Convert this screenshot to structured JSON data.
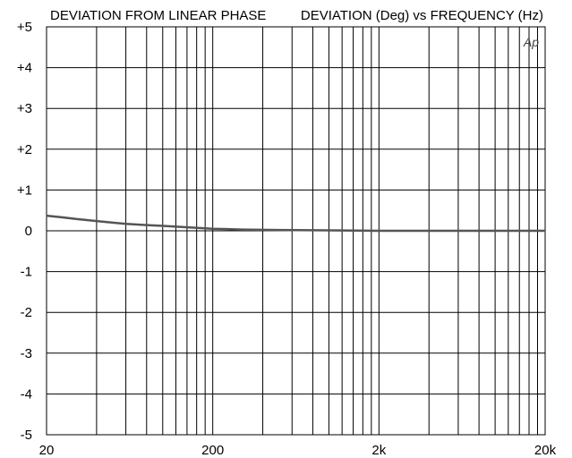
{
  "chart_data": {
    "type": "line",
    "title_left": "DEVIATION FROM LINEAR PHASE",
    "title_right": "DEVIATION (Deg) vs FREQUENCY (Hz)",
    "logo": "Ap",
    "x_scale": "log",
    "xlim": [
      20,
      20000
    ],
    "ylim": [
      -5,
      5
    ],
    "grid": true,
    "x_tick_labels": [
      {
        "value": 20,
        "label": "20"
      },
      {
        "value": 200,
        "label": "200"
      },
      {
        "value": 2000,
        "label": "2k"
      },
      {
        "value": 20000,
        "label": "20k"
      }
    ],
    "y_tick_labels": [
      {
        "value": 5,
        "label": "+5"
      },
      {
        "value": 4,
        "label": "+4"
      },
      {
        "value": 3,
        "label": "+3"
      },
      {
        "value": 2,
        "label": "+2"
      },
      {
        "value": 1,
        "label": "+1"
      },
      {
        "value": 0,
        "label": "0"
      },
      {
        "value": -1,
        "label": "-1"
      },
      {
        "value": -2,
        "label": "-2"
      },
      {
        "value": -3,
        "label": "-3"
      },
      {
        "value": -4,
        "label": "-4"
      },
      {
        "value": -5,
        "label": "-5"
      }
    ],
    "series": [
      {
        "color": "#555555",
        "x": [
          20,
          25,
          30,
          40,
          50,
          60,
          80,
          100,
          150,
          200,
          300,
          500,
          1000,
          2000,
          5000,
          10000,
          20000
        ],
        "y": [
          0.37,
          0.33,
          0.29,
          0.24,
          0.2,
          0.17,
          0.14,
          0.12,
          0.08,
          0.05,
          0.03,
          0.02,
          0.01,
          0.0,
          0.0,
          0.0,
          0.0
        ]
      }
    ]
  }
}
